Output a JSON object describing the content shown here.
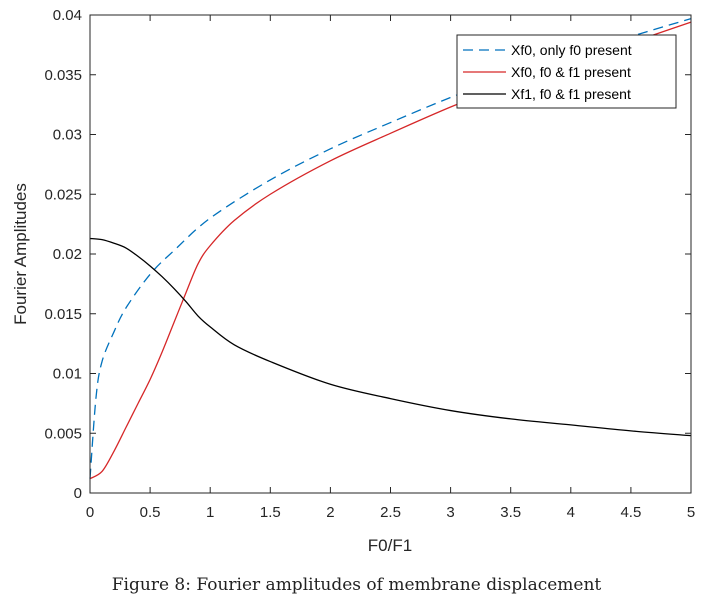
{
  "caption": "Figure 8: Fourier amplitudes of membrane displacement",
  "chart_data": {
    "type": "line",
    "xlabel": "F0/F1",
    "ylabel": "Fourier Amplitudes",
    "xlim": [
      0,
      5
    ],
    "ylim": [
      0,
      0.04
    ],
    "xticks": [
      0,
      0.5,
      1,
      1.5,
      2,
      2.5,
      3,
      3.5,
      4,
      4.5,
      5
    ],
    "xtick_labels": [
      "0",
      "0.5",
      "1",
      "1.5",
      "2",
      "2.5",
      "3",
      "3.5",
      "4",
      "4.5",
      "5"
    ],
    "yticks": [
      0,
      0.005,
      0.01,
      0.015,
      0.02,
      0.025,
      0.03,
      0.035,
      0.04
    ],
    "ytick_labels": [
      "0",
      "0.005",
      "0.01",
      "0.015",
      "0.02",
      "0.025",
      "0.03",
      "0.035",
      "0.04"
    ],
    "grid": false,
    "legend_position": "top-right",
    "series": [
      {
        "name": "Xf0, only f0 present",
        "color": "#0072bd",
        "dash": "dashed",
        "x": [
          0,
          0.05,
          0.1,
          0.2,
          0.3,
          0.5,
          0.7,
          1,
          1.5,
          2,
          2.5,
          3,
          3.5,
          4,
          4.5,
          5
        ],
        "y": [
          0.0012,
          0.008,
          0.011,
          0.0135,
          0.0155,
          0.0183,
          0.0203,
          0.023,
          0.0262,
          0.0288,
          0.031,
          0.0331,
          0.035,
          0.0366,
          0.0382,
          0.0397
        ]
      },
      {
        "name": "Xf0, f0 & f1 present",
        "color": "#d62728",
        "dash": "solid",
        "x": [
          0,
          0.1,
          0.2,
          0.3,
          0.4,
          0.5,
          0.6,
          0.7,
          0.8,
          0.9,
          1,
          1.2,
          1.5,
          2,
          2.5,
          3,
          3.5,
          4,
          4.5,
          5
        ],
        "y": [
          0.0012,
          0.0018,
          0.0035,
          0.0055,
          0.0075,
          0.0095,
          0.0118,
          0.0143,
          0.0168,
          0.0192,
          0.0207,
          0.0228,
          0.025,
          0.0278,
          0.0301,
          0.0323,
          0.0343,
          0.0361,
          0.0377,
          0.0394
        ]
      },
      {
        "name": "Xf1, f0 & f1 present",
        "color": "#000000",
        "dash": "solid",
        "x": [
          0,
          0.1,
          0.2,
          0.3,
          0.4,
          0.5,
          0.6,
          0.7,
          0.8,
          0.9,
          1,
          1.2,
          1.5,
          2,
          2.5,
          3,
          3.5,
          4,
          4.5,
          5
        ],
        "y": [
          0.0213,
          0.0212,
          0.0209,
          0.0205,
          0.0198,
          0.019,
          0.0181,
          0.0171,
          0.016,
          0.0148,
          0.0139,
          0.0124,
          0.011,
          0.0091,
          0.0079,
          0.0069,
          0.0062,
          0.0057,
          0.0052,
          0.0048
        ]
      }
    ]
  }
}
